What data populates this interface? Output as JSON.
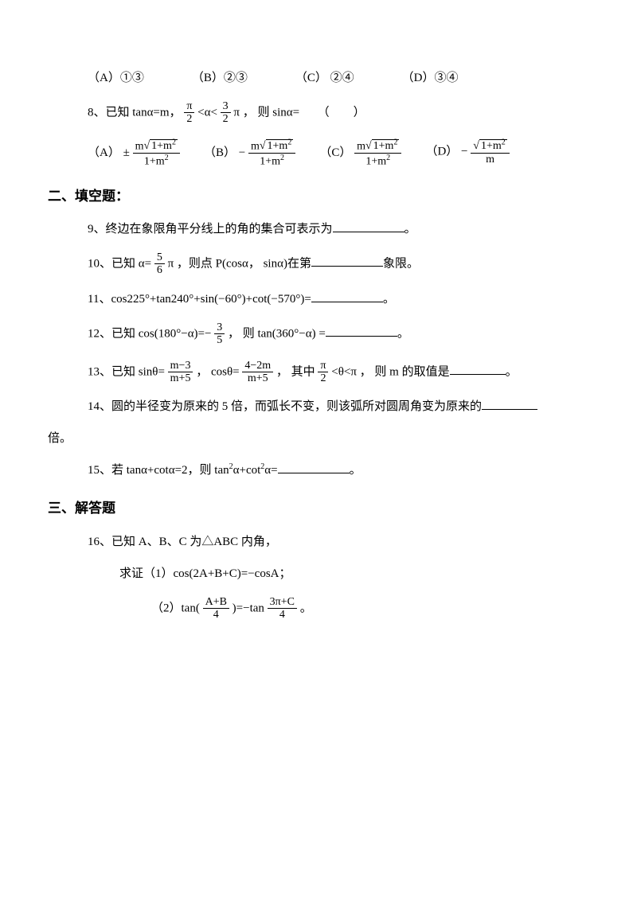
{
  "q7_opts": {
    "a": "（A）①③",
    "b": "（B）②③",
    "c": "（C） ②④",
    "d": "（D）③④"
  },
  "q8": {
    "stem_pre": "8、已知 tanα=m，",
    "cond_n": "π",
    "cond_d1": "2",
    "cond_mid": "<α<",
    "cond_n2": "3",
    "cond_d2": "2",
    "cond_post": "π ， 则 sinα=　　（　　）",
    "optA_label": "（A）",
    "optA_sign": "±",
    "optA_num": "m",
    "optA_rad": "1+m",
    "optA_den": "1+m",
    "optB_label": "（B）",
    "optB_sign": "−",
    "optC_label": "（C）",
    "optD_label": "（D）",
    "optD_sign": "−",
    "optD_rad": "1+m",
    "optD_den": "m"
  },
  "sec2": "二、填空题：",
  "q9": "9、终边在象限角平分线上的角的集合可表示为",
  "q9_end": "。",
  "q10_pre": "10、已知 α=",
  "q10_n": "5",
  "q10_d": "6",
  "q10_post": "π ，则点 P(cosα， sinα)在第",
  "q10_end": "象限。",
  "q11_pre": "11、cos225°+tan240°+sin(−60°)+cot(−570°)=",
  "q11_end": "。",
  "q12_pre": "12、已知 cos(180°−α)=−",
  "q12_n": "3",
  "q12_d": "5",
  "q12_mid": "， 则 tan(360°−α) =",
  "q12_end": "。",
  "q13_pre": "13、已知 sinθ=",
  "q13_n1": "m−3",
  "q13_d1": "m+5",
  "q13_mid1": "， cosθ=",
  "q13_n2": "4−2m",
  "q13_d2": "m+5",
  "q13_mid2": "， 其中",
  "q13_cn": "π",
  "q13_cd": "2",
  "q13_mid3": "<θ<π ， 则 m 的取值是",
  "q13_end": "。",
  "q14": "14、圆的半径变为原来的 5 倍，而弧长不变，则该弧所对圆周角变为原来的",
  "q14_line2": "倍。",
  "q15_pre": "15、若 tanα+cotα=2，则 tan",
  "q15_sup1": "2",
  "q15_mid": "α+cot",
  "q15_sup2": "2",
  "q15_post": "α=",
  "q15_end": "。",
  "sec3": "三、解答题",
  "q16": "16、已知 A、B、C 为△ABC 内角，",
  "q16_1": "求证（1）cos(2A+B+C)=−cosA；",
  "q16_2_pre": "（2）tan(",
  "q16_2_n1": "A+B",
  "q16_2_d1": "4",
  "q16_2_mid": ")=−tan",
  "q16_2_n2": "3π+C",
  "q16_2_d2": "4",
  "q16_2_end": " 。"
}
